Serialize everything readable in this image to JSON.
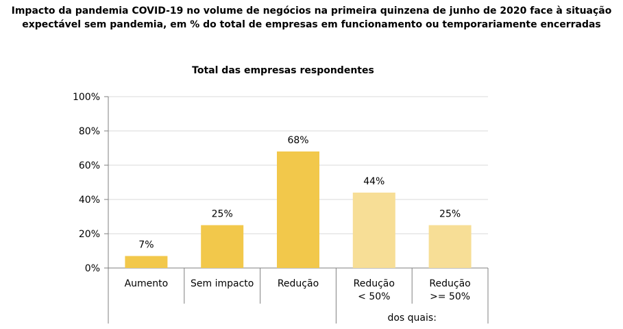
{
  "header": {
    "title_line1": "Impacto da pandemia COVID-19 no volume de negócios na primeira quinzena de junho de 2020 face à situação",
    "title_line2": "expectável sem pandemia, em % do total de empresas em funcionamento ou temporariamente encerradas"
  },
  "chart_data": {
    "type": "bar",
    "title": "Total das empresas respondentes",
    "categories": [
      [
        "Aumento"
      ],
      [
        "Sem impacto"
      ],
      [
        "Redução"
      ],
      [
        "Redução",
        "< 50%"
      ],
      [
        "Redução",
        ">= 50%"
      ]
    ],
    "values": [
      7,
      25,
      68,
      44,
      25
    ],
    "data_labels": [
      "7%",
      "25%",
      "68%",
      "44%",
      "25%"
    ],
    "group_label": "dos quais:",
    "y_ticks": [
      "0%",
      "20%",
      "40%",
      "60%",
      "80%",
      "100%"
    ],
    "ylim": [
      0,
      100
    ],
    "grid": true,
    "colors": {
      "primary": "#F2C84B",
      "secondary": "#F7DE96",
      "grid": "#D9D9D9",
      "axis": "#7F7F7F"
    }
  }
}
